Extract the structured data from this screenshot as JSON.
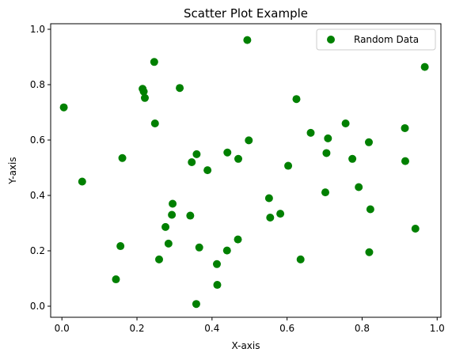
{
  "chart_data": {
    "type": "scatter",
    "title": "Scatter Plot Example",
    "xlabel": "X-axis",
    "ylabel": "Y-axis",
    "xlim": [
      -0.03,
      1.01
    ],
    "ylim": [
      -0.04,
      1.02
    ],
    "xticks": [
      0.0,
      0.2,
      0.4,
      0.6,
      0.8,
      1.0
    ],
    "yticks": [
      0.0,
      0.2,
      0.4,
      0.6,
      0.8,
      1.0
    ],
    "xtick_labels": [
      "0.0",
      "0.2",
      "0.4",
      "0.6",
      "0.8",
      "1.0"
    ],
    "ytick_labels": [
      "0.0",
      "0.2",
      "0.4",
      "0.6",
      "0.8",
      "1.0"
    ],
    "grid": false,
    "legend_position": "top-right",
    "series": [
      {
        "name": "Random Data",
        "color": "#008000",
        "points": [
          [
            0.005,
            0.718
          ],
          [
            0.054,
            0.45
          ],
          [
            0.144,
            0.097
          ],
          [
            0.156,
            0.217
          ],
          [
            0.161,
            0.535
          ],
          [
            0.215,
            0.785
          ],
          [
            0.218,
            0.775
          ],
          [
            0.221,
            0.752
          ],
          [
            0.246,
            0.882
          ],
          [
            0.248,
            0.66
          ],
          [
            0.259,
            0.169
          ],
          [
            0.276,
            0.286
          ],
          [
            0.284,
            0.226
          ],
          [
            0.293,
            0.33
          ],
          [
            0.295,
            0.37
          ],
          [
            0.314,
            0.788
          ],
          [
            0.342,
            0.327
          ],
          [
            0.346,
            0.52
          ],
          [
            0.358,
            0.008
          ],
          [
            0.359,
            0.549
          ],
          [
            0.366,
            0.212
          ],
          [
            0.388,
            0.491
          ],
          [
            0.413,
            0.152
          ],
          [
            0.414,
            0.077
          ],
          [
            0.44,
            0.201
          ],
          [
            0.441,
            0.555
          ],
          [
            0.469,
            0.241
          ],
          [
            0.47,
            0.532
          ],
          [
            0.494,
            0.961
          ],
          [
            0.498,
            0.599
          ],
          [
            0.552,
            0.39
          ],
          [
            0.555,
            0.32
          ],
          [
            0.582,
            0.334
          ],
          [
            0.603,
            0.507
          ],
          [
            0.625,
            0.748
          ],
          [
            0.636,
            0.169
          ],
          [
            0.663,
            0.626
          ],
          [
            0.702,
            0.411
          ],
          [
            0.705,
            0.553
          ],
          [
            0.709,
            0.606
          ],
          [
            0.756,
            0.66
          ],
          [
            0.774,
            0.532
          ],
          [
            0.791,
            0.43
          ],
          [
            0.818,
            0.592
          ],
          [
            0.819,
            0.195
          ],
          [
            0.822,
            0.35
          ],
          [
            0.914,
            0.643
          ],
          [
            0.915,
            0.524
          ],
          [
            0.942,
            0.28
          ],
          [
            0.967,
            0.864
          ]
        ]
      }
    ]
  }
}
